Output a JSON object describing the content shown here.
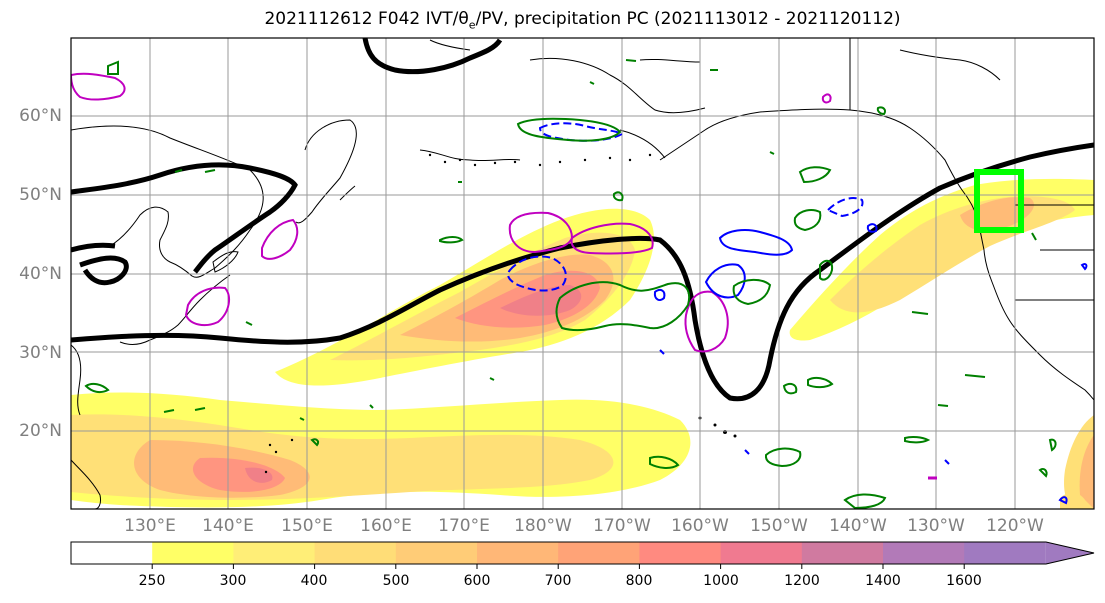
{
  "title": {
    "prefix": "2021112612 F042 IVT/θ",
    "subscript": "e",
    "suffix": "/PV, precipitation PC (2021113012 - 2021120112)"
  },
  "map": {
    "lat_labels": [
      "60°N",
      "50°N",
      "40°N",
      "30°N",
      "20°N"
    ],
    "lon_labels": [
      "130°E",
      "140°E",
      "150°E",
      "160°E",
      "170°E",
      "180°W",
      "170°W",
      "160°W",
      "150°W",
      "140°W",
      "130°W",
      "120°W"
    ],
    "region_box": {
      "lon_min": -125,
      "lon_max": -119,
      "lat_min": 45,
      "lat_max": 53
    },
    "colors": {
      "pv_contour": "#000000",
      "theta_e_contour": "#c000c0",
      "precip_positive": "#008000",
      "precip_negative": "#0000ff",
      "region_box": "#00ff00",
      "grid": "#9a9a9a"
    }
  },
  "colorbar": {
    "labels": [
      "250",
      "300",
      "400",
      "500",
      "600",
      "700",
      "800",
      "1000",
      "1200",
      "1400",
      "1600"
    ],
    "colors": [
      "#ffffff",
      "#ffff66",
      "#ffee77",
      "#ffdd77",
      "#ffcc77",
      "#ffb777",
      "#ffa377",
      "#ff8a80",
      "#f07a90",
      "#d07aa0",
      "#b27ab8",
      "#a07ac0"
    ],
    "extend": "max"
  }
}
